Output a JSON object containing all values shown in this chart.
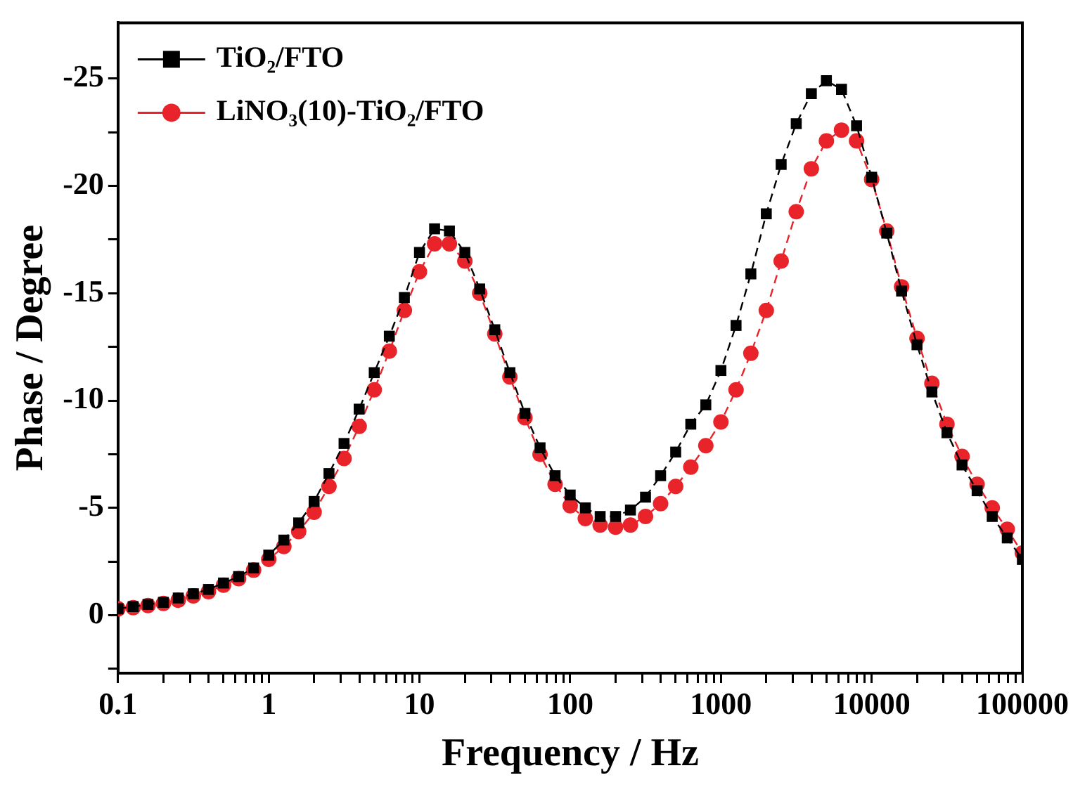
{
  "chart_data": {
    "type": "line",
    "xlabel": "Frequency / Hz",
    "ylabel": "Phase / Degree",
    "log": "x",
    "xlim": [
      0.1,
      100000
    ],
    "ylim": [
      2.7,
      -27.6
    ],
    "xticks": [
      0.1,
      {
        "value": 0.2,
        "label": null
      },
      {
        "value": 0.3,
        "label": null
      },
      {
        "value": 0.4,
        "label": null
      },
      {
        "value": 0.5,
        "label": null
      },
      {
        "value": 0.6,
        "label": null
      },
      {
        "value": 0.7,
        "label": null
      },
      {
        "value": 0.8,
        "label": null
      },
      {
        "value": 0.9,
        "label": null
      },
      1,
      {
        "value": 2,
        "label": null
      },
      {
        "value": 3,
        "label": null
      },
      {
        "value": 4,
        "label": null
      },
      {
        "value": 5,
        "label": null
      },
      {
        "value": 6,
        "label": null
      },
      {
        "value": 7,
        "label": null
      },
      {
        "value": 8,
        "label": null
      },
      {
        "value": 9,
        "label": null
      },
      10,
      {
        "value": 20,
        "label": null
      },
      {
        "value": 30,
        "label": null
      },
      {
        "value": 40,
        "label": null
      },
      {
        "value": 50,
        "label": null
      },
      {
        "value": 60,
        "label": null
      },
      {
        "value": 70,
        "label": null
      },
      {
        "value": 80,
        "label": null
      },
      {
        "value": 90,
        "label": null
      },
      100,
      {
        "value": 200,
        "label": null
      },
      {
        "value": 300,
        "label": null
      },
      {
        "value": 400,
        "label": null
      },
      {
        "value": 500,
        "label": null
      },
      {
        "value": 600,
        "label": null
      },
      {
        "value": 700,
        "label": null
      },
      {
        "value": 800,
        "label": null
      },
      {
        "value": 900,
        "label": null
      },
      1000,
      {
        "value": 2000,
        "label": null
      },
      {
        "value": 3000,
        "label": null
      },
      {
        "value": 4000,
        "label": null
      },
      {
        "value": 5000,
        "label": null
      },
      {
        "value": 6000,
        "label": null
      },
      {
        "value": 7000,
        "label": null
      },
      {
        "value": 8000,
        "label": null
      },
      {
        "value": 9000,
        "label": null
      },
      10000,
      {
        "value": 20000,
        "label": null
      },
      {
        "value": 30000,
        "label": null
      },
      {
        "value": 40000,
        "label": null
      },
      {
        "value": 50000,
        "label": null
      },
      {
        "value": 60000,
        "label": null
      },
      {
        "value": 70000,
        "label": null
      },
      {
        "value": 80000,
        "label": null
      },
      {
        "value": 90000,
        "label": null
      },
      100000
    ],
    "yticks": [
      {
        "value": 2.5,
        "label": null
      },
      0,
      {
        "value": -2.5,
        "label": null
      },
      -5,
      {
        "value": -7.5,
        "label": null
      },
      -10,
      {
        "value": -12.5,
        "label": null
      },
      -15,
      {
        "value": -17.5,
        "label": null
      },
      -20,
      {
        "value": -22.5,
        "label": null
      },
      -25
    ],
    "x": [
      0.1,
      0.126,
      0.158,
      0.2,
      0.251,
      0.316,
      0.398,
      0.501,
      0.631,
      0.794,
      1,
      1.26,
      1.58,
      2,
      2.51,
      3.16,
      3.98,
      5.01,
      6.31,
      7.94,
      10,
      12.6,
      15.8,
      20,
      25.1,
      31.6,
      39.8,
      50.1,
      63.1,
      79.4,
      100,
      126,
      158,
      200,
      251,
      316,
      398,
      501,
      631,
      794,
      1000,
      1260,
      1580,
      2000,
      2510,
      3160,
      3980,
      5010,
      6310,
      7940,
      10000,
      12600,
      15800,
      20000,
      25100,
      31600,
      39800,
      50100,
      63100,
      79400,
      100000
    ],
    "legend": "top left",
    "line_style": "dashed",
    "grid": false,
    "series": [
      {
        "name": "TiO₂/FTO",
        "color": "#000000",
        "marker": "square",
        "values": [
          -0.3,
          -0.4,
          -0.5,
          -0.6,
          -0.8,
          -1.0,
          -1.2,
          -1.5,
          -1.8,
          -2.2,
          -2.8,
          -3.5,
          -4.3,
          -5.3,
          -6.6,
          -8.0,
          -9.6,
          -11.3,
          -13.0,
          -14.8,
          -16.9,
          -18.0,
          -17.9,
          -16.9,
          -15.2,
          -13.3,
          -11.3,
          -9.4,
          -7.8,
          -6.5,
          -5.6,
          -5.0,
          -4.6,
          -4.6,
          -4.9,
          -5.5,
          -6.5,
          -7.6,
          -8.9,
          -9.8,
          -11.4,
          -13.5,
          -15.9,
          -18.7,
          -21.0,
          -22.9,
          -24.3,
          -24.9,
          -24.5,
          -22.8,
          -20.4,
          -17.8,
          -15.1,
          -12.6,
          -10.4,
          -8.5,
          -7.0,
          -5.8,
          -4.6,
          -3.6,
          -2.6
        ]
      },
      {
        "name": "LiNO₃(10)-TiO₂/FTO",
        "color": "#e8242a",
        "marker": "circle",
        "values": [
          -0.3,
          -0.35,
          -0.45,
          -0.55,
          -0.7,
          -0.9,
          -1.1,
          -1.4,
          -1.7,
          -2.1,
          -2.6,
          -3.2,
          -3.9,
          -4.8,
          -6.0,
          -7.3,
          -8.8,
          -10.5,
          -12.3,
          -14.2,
          -16.0,
          -17.3,
          -17.3,
          -16.5,
          -15.0,
          -13.1,
          -11.1,
          -9.2,
          -7.5,
          -6.1,
          -5.1,
          -4.5,
          -4.2,
          -4.1,
          -4.2,
          -4.6,
          -5.2,
          -6.0,
          -6.9,
          -7.9,
          -9.0,
          -10.5,
          -12.2,
          -14.2,
          -16.5,
          -18.8,
          -20.8,
          -22.1,
          -22.6,
          -22.1,
          -20.3,
          -17.9,
          -15.3,
          -12.9,
          -10.8,
          -8.9,
          -7.4,
          -6.1,
          -5.0,
          -4.0,
          -2.9
        ]
      }
    ]
  }
}
